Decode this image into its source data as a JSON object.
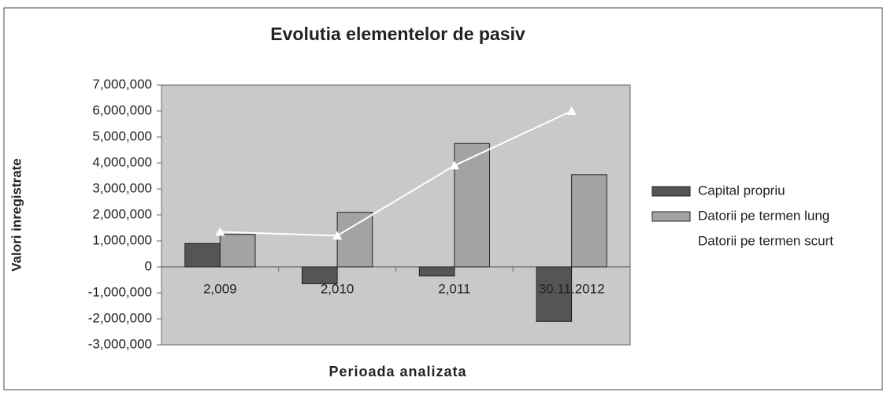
{
  "chart_data": {
    "type": "bar",
    "title": "Evolutia elementelor de pasiv",
    "x_label": "Perioada analizata",
    "y_label": "Valori inregistrate",
    "categories": [
      "2,009",
      "2,010",
      "2,011",
      "30.11.2012"
    ],
    "series": [
      {
        "name": "Capital propriu",
        "type": "bar",
        "color": "#555555",
        "values": [
          900000,
          -650000,
          -350000,
          -2100000
        ]
      },
      {
        "name": "Datorii pe termen lung",
        "type": "bar",
        "color": "#a3a3a3",
        "values": [
          1250000,
          2100000,
          4750000,
          3550000
        ]
      },
      {
        "name": "Datorii pe termen scurt",
        "type": "line",
        "color": "#ffffff",
        "values": [
          1350000,
          1200000,
          3900000,
          6000000
        ]
      }
    ],
    "ylim": [
      -3000000,
      7000000
    ],
    "yticks": [
      {
        "value": -3000000,
        "label": "-3,000,000"
      },
      {
        "value": -2000000,
        "label": "-2,000,000"
      },
      {
        "value": -1000000,
        "label": "-1,000,000"
      },
      0,
      {
        "value": 1000000,
        "label": "1,000,000"
      },
      {
        "value": 2000000,
        "label": "2,000,000"
      },
      {
        "value": 3000000,
        "label": "3,000,000"
      },
      {
        "value": 4000000,
        "label": "4,000,000"
      },
      {
        "value": 5000000,
        "label": "5,000,000"
      },
      {
        "value": 6000000,
        "label": "6,000,000"
      },
      {
        "value": 7000000,
        "label": "7,000,000"
      }
    ],
    "legend": "right"
  }
}
